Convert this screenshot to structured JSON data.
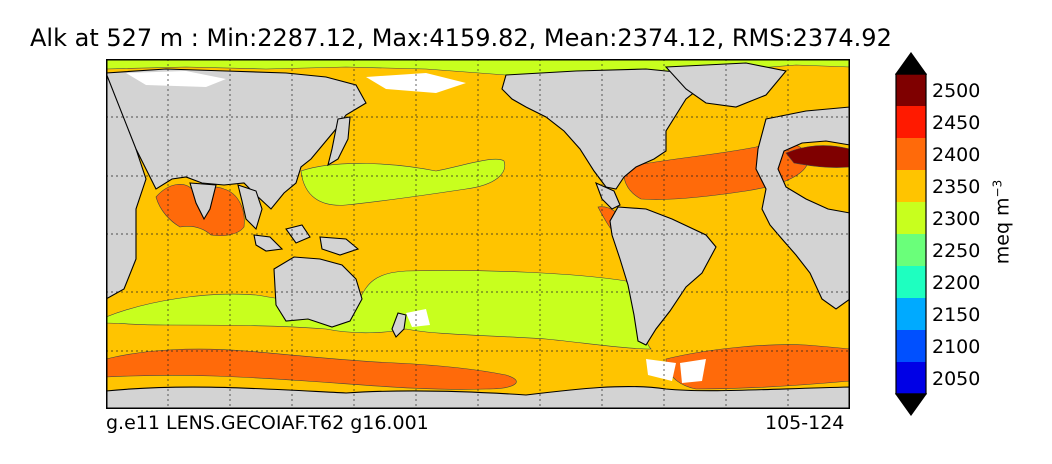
{
  "title": "Alk at 527 m : Min:2287.12, Max:4159.82, Mean:2374.12, RMS:2374.92",
  "footer": {
    "case_name": "g.e11 LENS.GECOIAF.T62 g16.001",
    "years": "105-124"
  },
  "colorbar": {
    "units_base": "meq m",
    "units_exp": "−3",
    "levels": [
      "2500",
      "2450",
      "2400",
      "2350",
      "2300",
      "2250",
      "2200",
      "2150",
      "2100",
      "2050"
    ],
    "colors": [
      "#7f0000",
      "#ff1a00",
      "#ff6a0a",
      "#ffc400",
      "#c8ff1e",
      "#6aff7a",
      "#1effc0",
      "#00aaff",
      "#0050ff",
      "#0000e6",
      "#00008a"
    ],
    "extend": "both"
  },
  "map": {
    "land_color": "#d3d3d3",
    "missing_color": "#ffffff",
    "gridlines": "dotted",
    "dominant_value_color": "#ffc400"
  }
}
